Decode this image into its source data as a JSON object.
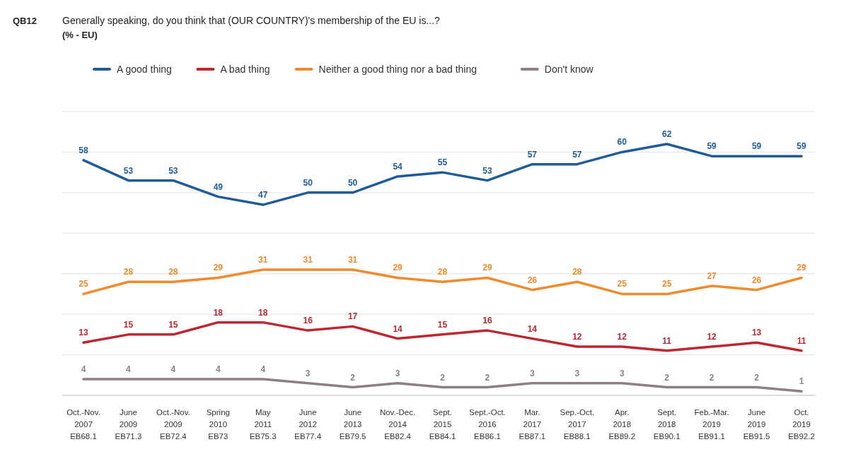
{
  "chart_data": {
    "type": "line",
    "title": "Generally speaking, do you think that (OUR COUNTRY)'s membership of the EU is...?",
    "subtitle": "(% - EU)",
    "annotations": [
      "QB12"
    ],
    "categories": [
      "Oct.-Nov.\n2007\nEB68.1",
      "June\n2009\nEB71.3",
      "Oct.-Nov.\n2009\nEB72.4",
      "Spring\n2010\nEB73",
      "May\n2011\nEB75.3",
      "June\n2012\nEB77.4",
      "June\n2013\nEB79.5",
      "Nov.-Dec.\n2014\nEB82.4",
      "Sept.\n2015\nEB84.1",
      "Sept.-Oct.\n2016\nEB86.1",
      "Mar.\n2017\nEB87.1",
      "Sep.-Oct.\n2017\nEB88.1",
      "Apr.\n2018\nEB89.2",
      "Sept.\n2018\nEB90.1",
      "Feb.-Mar.\n2019\nEB91.1",
      "June\n2019\nEB91.5",
      "Oct.\n2019\nEB92.2"
    ],
    "series": [
      {
        "name": "A good thing",
        "color": "#1f5b99",
        "values": [
          58,
          53,
          53,
          49,
          47,
          50,
          50,
          54,
          55,
          53,
          57,
          57,
          60,
          62,
          59,
          59,
          59
        ]
      },
      {
        "name": "A bad thing",
        "color": "#c0262d",
        "values": [
          13,
          15,
          15,
          18,
          18,
          16,
          17,
          14,
          15,
          16,
          14,
          12,
          12,
          11,
          12,
          13,
          11
        ]
      },
      {
        "name": "Neither a good thing nor a bad thing",
        "color": "#f08a2c",
        "values": [
          25,
          28,
          28,
          29,
          31,
          31,
          31,
          29,
          28,
          29,
          26,
          28,
          25,
          25,
          27,
          26,
          29
        ]
      },
      {
        "name": "Don't know",
        "color": "#8d7f87",
        "values": [
          4,
          4,
          4,
          4,
          4,
          3,
          2,
          3,
          2,
          2,
          3,
          3,
          3,
          2,
          2,
          2,
          1
        ]
      }
    ],
    "ylim": [
      0,
      70
    ],
    "yticks": [
      {
        "value": 10,
        "label": null
      },
      {
        "value": 20,
        "label": null
      },
      {
        "value": 30,
        "label": null
      },
      {
        "value": 40,
        "label": null
      },
      {
        "value": 50,
        "label": null
      },
      {
        "value": 60,
        "label": null
      },
      {
        "value": 70,
        "label": null
      }
    ],
    "tick_labels": "x",
    "grid": "y",
    "legend": "top left",
    "data_labels": true,
    "marker": "none",
    "line_style": "solid"
  }
}
